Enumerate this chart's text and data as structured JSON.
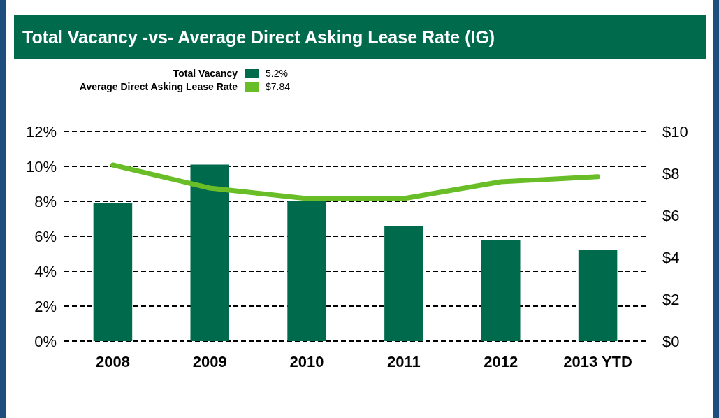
{
  "chart_data": {
    "type": "bar",
    "title": "Total Vacancy -vs- Average Direct Asking Lease Rate (IG)",
    "categories": [
      "2008",
      "2009",
      "2010",
      "2011",
      "2012",
      "2013 YTD"
    ],
    "series": [
      {
        "name": "Total Vacancy",
        "color": "#006a4d",
        "values": [
          7.9,
          10.1,
          8.0,
          6.6,
          5.8,
          5.2
        ]
      },
      {
        "name": "Average Direct Asking Lease Rate",
        "type": "line",
        "axis": "y2",
        "color": "#69be28",
        "values": [
          8.4,
          7.3,
          6.8,
          6.8,
          7.6,
          7.84
        ]
      }
    ],
    "annotations": [
      "5.2%",
      "$7.84"
    ],
    "ylim": [
      0,
      12
    ],
    "yticks": [
      {
        "value": 0,
        "label": "0%"
      },
      {
        "value": 2,
        "label": "2%"
      },
      {
        "value": 4,
        "label": "4%"
      },
      {
        "value": 6,
        "label": "6%"
      },
      {
        "value": 8,
        "label": "8%"
      },
      {
        "value": 10,
        "label": "10%"
      },
      {
        "value": 12,
        "label": "12%"
      }
    ],
    "y2lim": [
      0,
      10
    ],
    "y2ticks": [
      {
        "value": 0,
        "label": "$0"
      },
      {
        "value": 2,
        "label": "$2"
      },
      {
        "value": 4,
        "label": "$4"
      },
      {
        "value": 6,
        "label": "$6"
      },
      {
        "value": 8,
        "label": "$8"
      },
      {
        "value": 10,
        "label": "$10"
      }
    ],
    "grid": "y",
    "legend": "top left",
    "marker": "none",
    "line_style": "solid"
  }
}
